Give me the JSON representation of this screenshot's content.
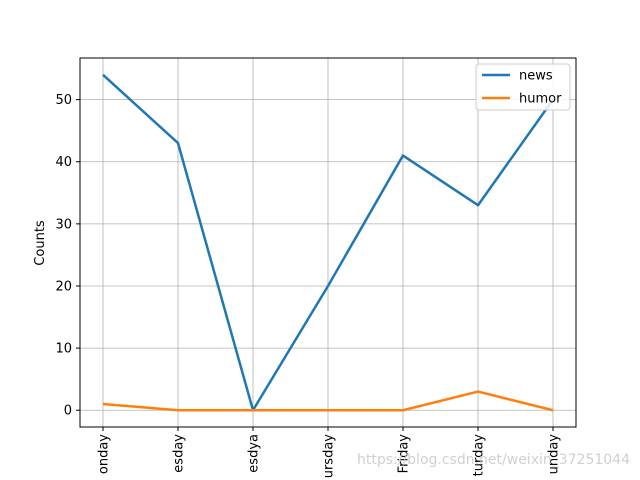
{
  "chart_data": {
    "type": "line",
    "categories": [
      "Monday",
      "Tuesday",
      "Wednesdya",
      "Thursday",
      "Friday",
      "Saturday",
      "Sunday"
    ],
    "tick_labels_visible": [
      "onday",
      "esday",
      "esdya",
      "ursday",
      "Friday",
      "turday",
      "unday"
    ],
    "series": [
      {
        "name": "news",
        "values": [
          54,
          43,
          0,
          20,
          41,
          33,
          50
        ],
        "color": "#1f77b4"
      },
      {
        "name": "humor",
        "values": [
          1,
          0,
          0,
          0,
          0,
          3,
          0
        ],
        "color": "#ff7f0e"
      }
    ],
    "title": "",
    "xlabel": "",
    "ylabel": "Counts",
    "ylim": [
      -2.7,
      56.7
    ],
    "yticks": [
      0,
      10,
      20,
      30,
      40,
      50
    ],
    "grid": true,
    "legend_position": "top-right"
  },
  "watermark": "https://blog.csdn.net/weixin_37251044"
}
